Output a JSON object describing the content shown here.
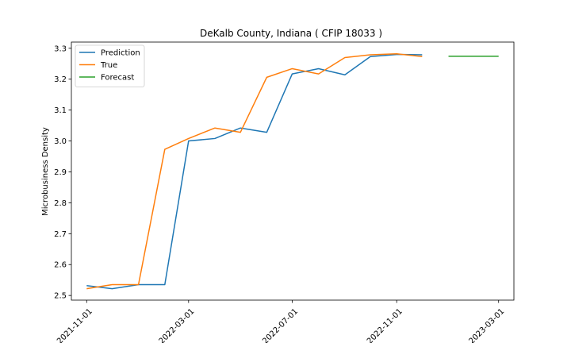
{
  "chart_data": {
    "type": "line",
    "title": "DeKalb County, Indiana ( CFIP 18033 )",
    "xlabel": "",
    "ylabel": "Microbusiness Density",
    "xlim": [
      "2021-10-14",
      "2023-03-19"
    ],
    "ylim": [
      2.485,
      3.32
    ],
    "x_ticks": [
      "2021-11-01",
      "2022-03-01",
      "2022-07-01",
      "2022-11-01",
      "2023-03-01"
    ],
    "y_ticks": [
      "2.5",
      "2.6",
      "2.7",
      "2.8",
      "2.9",
      "3.0",
      "3.1",
      "3.2",
      "3.3"
    ],
    "grid": false,
    "legend_position": "upper-left",
    "series": [
      {
        "name": "Prediction",
        "color": "#1f77b4",
        "x": [
          "2021-11-01",
          "2021-12-01",
          "2022-01-01",
          "2022-02-01",
          "2022-03-01",
          "2022-04-01",
          "2022-05-01",
          "2022-06-01",
          "2022-07-01",
          "2022-08-01",
          "2022-09-01",
          "2022-10-01",
          "2022-11-01",
          "2022-12-01"
        ],
        "y": [
          2.532,
          2.522,
          2.535,
          2.535,
          3.0,
          3.008,
          3.042,
          3.028,
          3.217,
          3.234,
          3.214,
          3.273,
          3.28,
          3.279
        ]
      },
      {
        "name": "True",
        "color": "#ff7f0e",
        "x": [
          "2021-11-01",
          "2021-12-01",
          "2022-01-01",
          "2022-02-01",
          "2022-03-01",
          "2022-04-01",
          "2022-05-01",
          "2022-06-01",
          "2022-07-01",
          "2022-08-01",
          "2022-09-01",
          "2022-10-01",
          "2022-11-01",
          "2022-12-01"
        ],
        "y": [
          2.522,
          2.535,
          2.535,
          2.973,
          3.008,
          3.042,
          3.028,
          3.206,
          3.234,
          3.217,
          3.27,
          3.279,
          3.282,
          3.273
        ]
      },
      {
        "name": "Forecast",
        "color": "#2ca02c",
        "x": [
          "2023-01-01",
          "2023-02-01",
          "2023-03-01"
        ],
        "y": [
          3.274,
          3.274,
          3.274
        ]
      }
    ]
  }
}
